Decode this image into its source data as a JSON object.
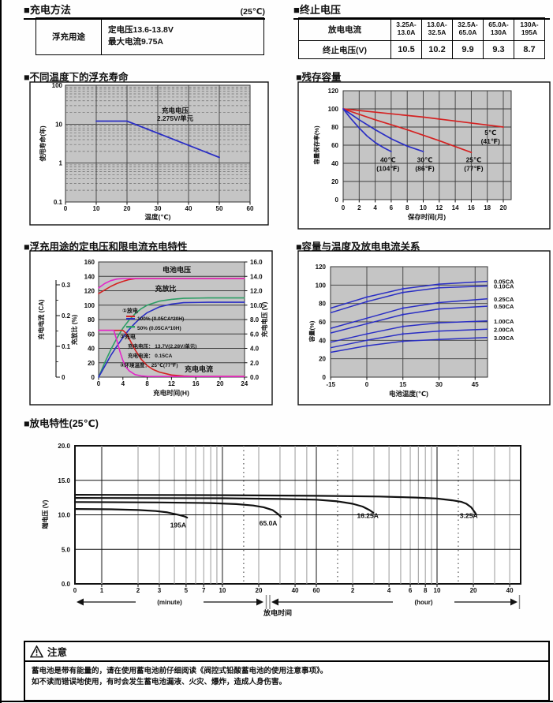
{
  "colors": {
    "blue": "#2a2ec4",
    "red": "#d42222",
    "magenta": "#e226c8",
    "green": "#2e9e66",
    "black": "#111111",
    "plot_bg": "#c5c5c5",
    "grid": "#5e5e5e"
  },
  "charging_method": {
    "title": "■充电方法",
    "temp": "(25℃)",
    "row_header": "浮充用途",
    "line1": "定电压13.6-13.8V",
    "line2": "最大电流9.75A"
  },
  "end_voltage": {
    "title": "■终止电压",
    "row1_header": "放电电流",
    "row2_header": "终止电压(V)",
    "ranges": [
      {
        "l1": "3.25A-",
        "l2": "13.0A"
      },
      {
        "l1": "13.0A-",
        "l2": "32.5A"
      },
      {
        "l1": "32.5A-",
        "l2": "65.0A"
      },
      {
        "l1": "65.0A-",
        "l2": "130A"
      },
      {
        "l1": "130A-",
        "l2": "195A"
      }
    ],
    "values": [
      "10.5",
      "10.2",
      "9.9",
      "9.3",
      "8.7"
    ]
  },
  "chart_data": [
    {
      "type": "line",
      "id": "float_life",
      "title": "■不同温度下的浮充寿命",
      "xlabel": "温度(℃)",
      "ylabel": "使用寿命(年)",
      "y_scale": "log",
      "x_ticks": [
        "0",
        "10",
        "20",
        "30",
        "40",
        "50",
        "60"
      ],
      "y_ticks": [
        "100",
        "10",
        "1",
        "0.1"
      ],
      "annotation1": "充电电压",
      "annotation2": "2.275V/单元",
      "series": [
        {
          "name": "float-life",
          "points": [
            [
              10,
              12
            ],
            [
              20,
              12
            ],
            [
              50,
              1.4
            ]
          ]
        }
      ]
    },
    {
      "type": "line",
      "id": "residual_capacity",
      "title": "■残存容量",
      "xlabel": "保存时间(月)",
      "ylabel": "容量保存率(%)",
      "xlim": [
        0,
        20
      ],
      "ylim": [
        0,
        120
      ],
      "x_ticks": [
        "0",
        "2",
        "4",
        "6",
        "8",
        "10",
        "12",
        "14",
        "16",
        "18",
        "20"
      ],
      "y_ticks": [
        "0",
        "20",
        "40",
        "60",
        "80",
        "100",
        "120"
      ],
      "series": [
        {
          "name": "t5",
          "label": "5℃",
          "label2": "(41℉)",
          "color": "red",
          "lx": 18.4,
          "ly": 74,
          "points": [
            [
              0,
              100
            ],
            [
              5,
              95.5
            ],
            [
              10,
              91
            ],
            [
              15,
              85.5
            ],
            [
              20,
              80
            ]
          ]
        },
        {
          "name": "t25",
          "label": "25℃",
          "label2": "(77℉)",
          "color": "red",
          "lx": 16.3,
          "ly": 44,
          "points": [
            [
              0,
              100
            ],
            [
              4,
              88
            ],
            [
              8,
              77
            ],
            [
              12,
              65
            ],
            [
              16,
              52
            ]
          ]
        },
        {
          "name": "t30",
          "label": "30℃",
          "label2": "(86℉)",
          "color": "blue",
          "lx": 10.2,
          "ly": 44,
          "points": [
            [
              0,
              100
            ],
            [
              2,
              88
            ],
            [
              4,
              77
            ],
            [
              6,
              67
            ],
            [
              8,
              59
            ],
            [
              10,
              53
            ]
          ]
        },
        {
          "name": "t40",
          "label": "40℃",
          "label2": "(104℉)",
          "color": "blue",
          "lx": 5.6,
          "ly": 44,
          "points": [
            [
              0,
              100
            ],
            [
              1,
              89
            ],
            [
              2,
              79
            ],
            [
              3,
              70
            ],
            [
              4,
              63
            ],
            [
              5,
              57.5
            ],
            [
              6,
              53
            ]
          ]
        }
      ]
    },
    {
      "type": "line",
      "id": "charge_characteristics",
      "title": "■浮充用途的定电压和限电流充电特性",
      "xlabel": "充电时间(H)",
      "left_outer_label": "充电电流 (CA)",
      "left_inner_label": "充放比 (%)",
      "right_label": "充电电压 (V)",
      "x_ticks": [
        "0",
        "4",
        "8",
        "12",
        "16",
        "20",
        "24"
      ],
      "inner_ticks": [
        "160",
        "140",
        "120",
        "100",
        "80",
        "60",
        "40",
        "20",
        "0"
      ],
      "outer_ticks": [
        "0.3",
        "0.2",
        "0.1",
        "0"
      ],
      "right_ticks": [
        "16.0",
        "14.0",
        "12.0",
        "10.0",
        "8.0",
        "6.0",
        "4.0",
        "2.0",
        "0.0"
      ],
      "ann_voltage": "电池电压",
      "ann_ratio": "充放比",
      "ann_current": "充电电流",
      "legend": {
        "l1": "①放电",
        "l2": "100% (0.05CA*20H)",
        "l3": "50% (0.05CA*10H)",
        "l4": "②充电",
        "l5": "充电电压： 13.7V(2.28V/单元)",
        "l6": "充电电流： 0.15CA",
        "l7": "③环境温度： 25℃(77℉)"
      },
      "series": [
        {
          "name": "ratio-50",
          "color": "green",
          "unit": "pct",
          "points": [
            [
              0,
              0
            ],
            [
              1,
              20
            ],
            [
              2,
              38
            ],
            [
              3,
              54
            ],
            [
              4,
              68
            ],
            [
              5,
              79
            ],
            [
              6,
              88
            ],
            [
              7,
              95
            ],
            [
              8,
              100
            ],
            [
              10,
              105.5
            ],
            [
              12,
              108
            ],
            [
              14,
              109.5
            ],
            [
              18,
              110
            ],
            [
              24,
              110
            ]
          ]
        },
        {
          "name": "ratio-100",
          "color": "blue",
          "unit": "pct",
          "points": [
            [
              0,
              0
            ],
            [
              1,
              15
            ],
            [
              2,
              30
            ],
            [
              3,
              43
            ],
            [
              4,
              55
            ],
            [
              5,
              66
            ],
            [
              6,
              75
            ],
            [
              7,
              83
            ],
            [
              8,
              89.5
            ],
            [
              10,
              97.5
            ],
            [
              12,
              101.5
            ],
            [
              14,
              103.5
            ],
            [
              18,
              104
            ],
            [
              24,
              104
            ]
          ]
        },
        {
          "name": "voltage-100",
          "color": "red",
          "unit": "V",
          "points": [
            [
              0,
              11.6
            ],
            [
              1,
              12.1
            ],
            [
              2,
              12.6
            ],
            [
              3,
              13.0
            ],
            [
              4,
              13.3
            ],
            [
              5,
              13.55
            ],
            [
              6,
              13.68
            ],
            [
              7,
              13.7
            ],
            [
              24,
              13.7
            ]
          ]
        },
        {
          "name": "voltage-50",
          "color": "magenta",
          "unit": "V",
          "points": [
            [
              0,
              12.4
            ],
            [
              1,
              13.0
            ],
            [
              2,
              13.4
            ],
            [
              3,
              13.62
            ],
            [
              4,
              13.7
            ],
            [
              24,
              13.7
            ]
          ]
        },
        {
          "name": "current-100",
          "color": "red",
          "unit": "pct",
          "points": [
            [
              0,
              65
            ],
            [
              4,
              65
            ],
            [
              4.5,
              61
            ],
            [
              5,
              54
            ],
            [
              5.5,
              46
            ],
            [
              6,
              38
            ],
            [
              7,
              25
            ],
            [
              8,
              16
            ],
            [
              9,
              10.5
            ],
            [
              10,
              7
            ],
            [
              12,
              3
            ],
            [
              14,
              1.5
            ],
            [
              16,
              1
            ],
            [
              24,
              1
            ]
          ]
        },
        {
          "name": "current-50",
          "color": "magenta",
          "unit": "pct",
          "points": [
            [
              0,
              65
            ],
            [
              2.5,
              65
            ],
            [
              3,
              51
            ],
            [
              3.5,
              36
            ],
            [
              4,
              23
            ],
            [
              4.5,
              14
            ],
            [
              5,
              9
            ],
            [
              6,
              3.5
            ],
            [
              7,
              1.8
            ],
            [
              8,
              1
            ],
            [
              24,
              0.8
            ]
          ]
        }
      ]
    },
    {
      "type": "line",
      "id": "capacity_temperature",
      "title": "■容量与温度及放电电流关系",
      "xlabel": "电池温度(℃)",
      "ylabel": "容量(%)",
      "x_ticks": [
        "-15",
        "0",
        "15",
        "30",
        "45"
      ],
      "y_ticks": [
        "0",
        "20",
        "40",
        "60",
        "80",
        "100",
        "120"
      ],
      "series": [
        {
          "name": "c005",
          "label": "0.05CA",
          "points": [
            [
              -15,
              75
            ],
            [
              0,
              87
            ],
            [
              15,
              96
            ],
            [
              30,
              101
            ],
            [
              50,
              104
            ]
          ]
        },
        {
          "name": "c010",
          "label": "0.10CA",
          "points": [
            [
              -15,
              70
            ],
            [
              0,
              82
            ],
            [
              15,
              92
            ],
            [
              30,
              97
            ],
            [
              50,
              99
            ]
          ]
        },
        {
          "name": "c025",
          "label": "0.25CA",
          "points": [
            [
              -15,
              53
            ],
            [
              0,
              64
            ],
            [
              15,
              75
            ],
            [
              30,
              81
            ],
            [
              50,
              85
            ]
          ]
        },
        {
          "name": "c050",
          "label": "0.50CA",
          "points": [
            [
              -15,
              48
            ],
            [
              0,
              58
            ],
            [
              15,
              68
            ],
            [
              30,
              74
            ],
            [
              50,
              77
            ]
          ]
        },
        {
          "name": "c100",
          "label": "1.00CA",
          "points": [
            [
              -15,
              38
            ],
            [
              0,
              47
            ],
            [
              15,
              55
            ],
            [
              30,
              59
            ],
            [
              50,
              61
            ]
          ]
        },
        {
          "name": "c200",
          "label": "2.00CA",
          "points": [
            [
              -15,
              32
            ],
            [
              0,
              40
            ],
            [
              15,
              47
            ],
            [
              30,
              50
            ],
            [
              50,
              52
            ]
          ]
        },
        {
          "name": "c300",
          "label": "3.00CA",
          "points": [
            [
              -15,
              27
            ],
            [
              0,
              34
            ],
            [
              15,
              39
            ],
            [
              30,
              41
            ],
            [
              50,
              43
            ]
          ]
        }
      ]
    },
    {
      "type": "line",
      "id": "discharge",
      "title": "■放电特性(25℃)",
      "xlabel": "放电时间",
      "ylabel": "端电压 (V)",
      "y_ticks": [
        "20.0",
        "15.0",
        "10.0",
        "5.0",
        "0.0"
      ],
      "origin_label": "0",
      "minute_label": "(minute)",
      "hour_label": "(hour)",
      "minute_tick_labels": [
        "1",
        "2",
        "3",
        "5",
        "7",
        "10",
        "20",
        "40",
        "60"
      ],
      "hour_tick_labels": [
        "2",
        "4",
        "6",
        "8",
        "10",
        "20",
        "40"
      ],
      "series": [
        {
          "name": "d195",
          "label": "195A",
          "lx": 4.3,
          "ly": 8.5,
          "points": [
            [
              0.6,
              10.85
            ],
            [
              1.2,
              10.8
            ],
            [
              2,
              10.7
            ],
            [
              2.8,
              10.55
            ],
            [
              3.5,
              10.35
            ],
            [
              4.2,
              10.05
            ],
            [
              4.8,
              9.8
            ],
            [
              5.1,
              9.6
            ]
          ]
        },
        {
          "name": "d65",
          "label": "65.0A",
          "lx": 24,
          "ly": 8.8,
          "points": [
            [
              0.6,
              11.85
            ],
            [
              3,
              11.8
            ],
            [
              8,
              11.7
            ],
            [
              13,
              11.55
            ],
            [
              18,
              11.35
            ],
            [
              22,
              11.1
            ],
            [
              26,
              10.7
            ],
            [
              29,
              10.1
            ],
            [
              30.5,
              9.7
            ]
          ]
        },
        {
          "name": "d1625",
          "label": "16.25A",
          "lx": 160,
          "ly": 9.9,
          "points": [
            [
              0.6,
              12.45
            ],
            [
              10,
              12.4
            ],
            [
              30,
              12.3
            ],
            [
              60,
              12.2
            ],
            [
              90,
              11.95
            ],
            [
              120,
              11.6
            ],
            [
              145,
              11.2
            ],
            [
              165,
              10.7
            ],
            [
              178,
              10.3
            ]
          ]
        },
        {
          "name": "d325",
          "label": "3.25A",
          "lx": 1100,
          "ly": 9.9,
          "points": [
            [
              0.6,
              12.9
            ],
            [
              10,
              12.85
            ],
            [
              60,
              12.75
            ],
            [
              200,
              12.65
            ],
            [
              400,
              12.5
            ],
            [
              600,
              12.35
            ],
            [
              800,
              12.1
            ],
            [
              950,
              11.9
            ],
            [
              1050,
              11.6
            ],
            [
              1150,
              11.1
            ],
            [
              1230,
              10.4
            ],
            [
              1270,
              10.0
            ]
          ]
        }
      ]
    }
  ],
  "notice": {
    "title": "注意",
    "line1": "蓄电池是带有能量的，请在使用蓄电池前仔细阅读《阀控式铅酸蓄电池的使用注意事项》。",
    "line2": "如不读而错误地使用，有时会发生蓄电池漏液、火灾、爆炸，造成人身伤害。"
  }
}
